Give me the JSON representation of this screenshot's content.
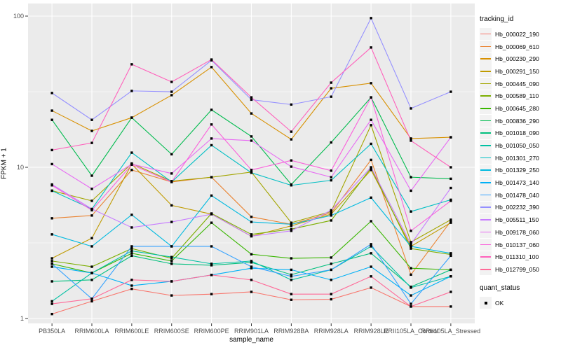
{
  "chart_data": {
    "type": "line",
    "title": "",
    "xlabel": "sample_name",
    "ylabel": "FPKM + 1",
    "y_scale": "log10",
    "y_ticks": [
      1,
      10,
      100
    ],
    "y_tick_labels": [
      "1",
      "10",
      "100"
    ],
    "y_minor_gridlines": [
      3.1623,
      31.623
    ],
    "ylim": [
      0.93,
      121
    ],
    "grid": true,
    "panel_bg": "#EBEBEB",
    "grid_color": "#FFFFFF",
    "marker_color": "#000000",
    "tick_label_color": "#4d4d4d",
    "categories": [
      "PB350LA",
      "RRIM600LA",
      "RRIM600LE",
      "RRIM600SE",
      "RRIM600PE",
      "RRIM901LA",
      "RRIM928BA",
      "RRIM928LA",
      "RRIM928LE",
      "RRII105LA_Control",
      "RRII105LA_Stressed"
    ],
    "legend": {
      "title": "tracking_id",
      "position": "right"
    },
    "quant_status": {
      "title": "quant_status",
      "items": [
        {
          "label": "OK",
          "marker": "black-square"
        }
      ]
    },
    "series": [
      {
        "name": "Hb_000022_190",
        "color": "#F8766D",
        "values": [
          1.07,
          1.3,
          1.57,
          1.42,
          1.45,
          1.5,
          1.33,
          1.34,
          1.6,
          1.2,
          1.2
        ]
      },
      {
        "name": "Hb_000069_610",
        "color": "#EA8331",
        "values": [
          4.6,
          4.8,
          9.6,
          8.0,
          8.6,
          4.7,
          4.2,
          5.0,
          11.2,
          1.95,
          4.4
        ]
      },
      {
        "name": "Hb_000230_290",
        "color": "#D89000",
        "values": [
          23.7,
          17.4,
          21.3,
          30,
          46,
          22.7,
          15.3,
          33.3,
          36,
          15.5,
          15.8
        ]
      },
      {
        "name": "Hb_000291_150",
        "color": "#C09B00",
        "values": [
          2.5,
          3.4,
          10.5,
          5.6,
          4.9,
          3.5,
          4.1,
          4.9,
          9.6,
          3.0,
          4.3
        ]
      },
      {
        "name": "Hb_000445_090",
        "color": "#A3A500",
        "values": [
          7.0,
          6.0,
          10.6,
          8.1,
          8.6,
          9.3,
          4.3,
          5.1,
          19,
          3.2,
          4.5
        ]
      },
      {
        "name": "Hb_000589_110",
        "color": "#7CAE00",
        "values": [
          2.4,
          2.2,
          2.9,
          2.5,
          4.95,
          3.6,
          3.9,
          4.45,
          9.9,
          2.9,
          2.65
        ]
      },
      {
        "name": "Hb_000645_280",
        "color": "#39B600",
        "values": [
          2.3,
          2.0,
          2.7,
          2.4,
          4.3,
          2.66,
          2.5,
          2.53,
          4.4,
          2.15,
          2.1
        ]
      },
      {
        "name": "Hb_000836_290",
        "color": "#00BB4E",
        "values": [
          20.6,
          8.8,
          21.3,
          12.2,
          24,
          16,
          7.7,
          14.6,
          29,
          8.6,
          8.4
        ]
      },
      {
        "name": "Hb_001018_090",
        "color": "#00BF7D",
        "values": [
          1.76,
          1.8,
          2.6,
          2.3,
          2.25,
          2.35,
          1.95,
          2.3,
          2.7,
          1.62,
          2.1
        ]
      },
      {
        "name": "Hb_001050_050",
        "color": "#00C1A3",
        "values": [
          1.3,
          2.0,
          2.8,
          2.55,
          2.3,
          2.4,
          1.8,
          2.1,
          3.0,
          1.6,
          1.9
        ]
      },
      {
        "name": "Hb_001301_270",
        "color": "#00BFC4",
        "values": [
          7.0,
          5.3,
          12.5,
          8.0,
          14,
          9.2,
          7.6,
          8.2,
          14.3,
          5.1,
          6.1
        ]
      },
      {
        "name": "Hb_001329_250",
        "color": "#00BAE0",
        "values": [
          3.6,
          3.0,
          4.85,
          3.0,
          6.5,
          4.35,
          4.2,
          4.8,
          6.3,
          3.0,
          2.7
        ]
      },
      {
        "name": "Hb_001473_140",
        "color": "#00B0F6",
        "values": [
          2.2,
          2.0,
          1.65,
          1.76,
          1.94,
          2.15,
          2.1,
          1.8,
          2.2,
          1.42,
          1.9
        ]
      },
      {
        "name": "Hb_001478_040",
        "color": "#35A2FF",
        "values": [
          2.3,
          1.35,
          3.0,
          3.0,
          3.0,
          2.2,
          1.9,
          2.1,
          3.1,
          1.25,
          2.6
        ]
      },
      {
        "name": "Hb_002232_390",
        "color": "#9590FF",
        "values": [
          31,
          20.6,
          32,
          31.6,
          51,
          28,
          26,
          29.3,
          97,
          24.5,
          31.6
        ]
      },
      {
        "name": "Hb_005511_150",
        "color": "#C77CFF",
        "values": [
          7.7,
          5.3,
          4.0,
          4.35,
          4.9,
          3.5,
          3.8,
          5.2,
          10,
          3.1,
          7.3
        ]
      },
      {
        "name": "Hb_009178_060",
        "color": "#E76BF3",
        "values": [
          10.5,
          7.2,
          10.5,
          9.1,
          15.5,
          15,
          10.1,
          8.6,
          20.6,
          7.0,
          15.8
        ]
      },
      {
        "name": "Hb_010137_060",
        "color": "#FA62DB",
        "values": [
          7.6,
          5.2,
          10.4,
          8.0,
          19.2,
          9.6,
          11.1,
          9.5,
          29,
          3.8,
          6.0
        ]
      },
      {
        "name": "Hb_011310_100",
        "color": "#FF62BC",
        "values": [
          13,
          14.5,
          48,
          36.7,
          51.6,
          29,
          17.2,
          36.3,
          62,
          15,
          10
        ]
      },
      {
        "name": "Hb_012799_050",
        "color": "#FF6A98",
        "values": [
          1.25,
          1.35,
          1.8,
          1.76,
          1.94,
          1.8,
          1.45,
          1.45,
          1.9,
          1.2,
          1.5
        ]
      }
    ]
  }
}
